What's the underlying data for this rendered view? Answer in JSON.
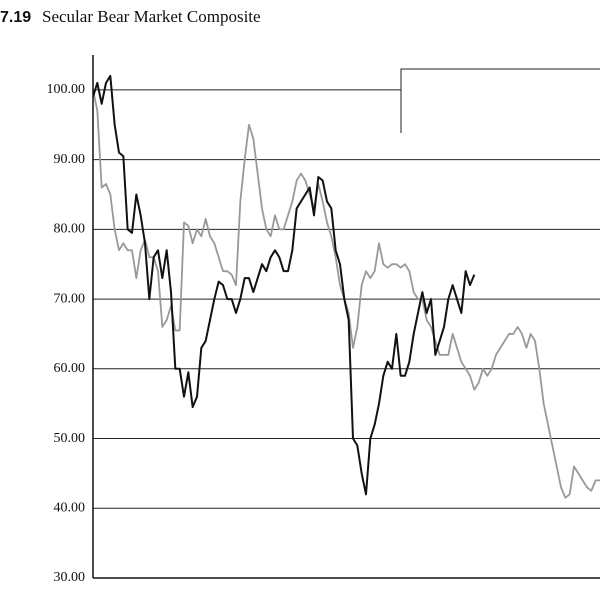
{
  "chart_data": {
    "type": "line",
    "figure_number": "7.19",
    "title": "Secular Bear Market Composite",
    "ylim": [
      30,
      105
    ],
    "yticks": [
      {
        "value": 30,
        "label": "30.00"
      },
      {
        "value": 40,
        "label": "40.00"
      },
      {
        "value": 50,
        "label": "50.00"
      },
      {
        "value": 60,
        "label": "60.00"
      },
      {
        "value": 70,
        "label": "70.00"
      },
      {
        "value": 80,
        "label": "80.00"
      },
      {
        "value": 90,
        "label": "90.00"
      },
      {
        "value": 100,
        "label": "100.00"
      }
    ],
    "grid": true,
    "series": [
      {
        "color": "#999999",
        "values": [
          100,
          97,
          86,
          86.5,
          85,
          80,
          77,
          78,
          77,
          77,
          73,
          77,
          78.5,
          76,
          76,
          74,
          66,
          67,
          69,
          65.5,
          65.5,
          81,
          80.5,
          78,
          80,
          79,
          81.5,
          79,
          78,
          76,
          74,
          74,
          73.5,
          72,
          84,
          90,
          95,
          93,
          88,
          83,
          80,
          79,
          82,
          80,
          80,
          82,
          84,
          87,
          88,
          87,
          85,
          83,
          86.5,
          84,
          81,
          79,
          76,
          72,
          70,
          68,
          63,
          66,
          72,
          74,
          73,
          74,
          78,
          75,
          74.5,
          75,
          75,
          74.5,
          75,
          74,
          71,
          70,
          70,
          67,
          66,
          64,
          62,
          62,
          62,
          65,
          63,
          61,
          60,
          59,
          57,
          58,
          60,
          59,
          60,
          62,
          63,
          64,
          65,
          65,
          66,
          65,
          63,
          65,
          64,
          60,
          55,
          52,
          49,
          46,
          43,
          41.5,
          42,
          46,
          45,
          44,
          43,
          42.5,
          44,
          44
        ]
      },
      {
        "color": "#111111",
        "values": [
          99,
          101,
          98,
          101,
          102,
          95,
          91,
          90.5,
          80,
          79.5,
          85,
          82,
          78,
          70,
          76,
          77,
          73,
          77,
          71,
          60,
          60,
          56,
          59.5,
          54.5,
          56,
          63,
          64,
          67,
          70,
          72.5,
          72,
          70,
          70,
          68,
          70,
          73,
          73,
          71,
          73,
          75,
          74,
          76,
          77,
          76,
          74,
          74,
          77,
          83,
          84,
          85,
          86,
          82,
          87.5,
          87,
          84,
          83,
          77,
          75,
          70,
          67,
          50,
          49,
          45,
          42,
          50,
          52,
          55,
          59,
          61,
          60,
          65,
          59,
          59,
          61,
          65,
          68,
          71,
          68,
          70,
          62,
          64,
          66,
          70,
          72,
          70,
          68,
          74,
          72,
          73.5
        ]
      }
    ]
  }
}
